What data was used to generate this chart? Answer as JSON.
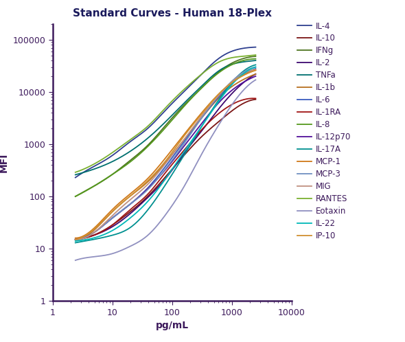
{
  "title": "Standard Curves - Human 18-Plex",
  "xlabel": "pg/mL",
  "ylabel": "MFI",
  "xlim": [
    1,
    10000
  ],
  "ylim": [
    1,
    200000
  ],
  "series": [
    {
      "label": "IL-4",
      "color": "#2e3f8f",
      "x": [
        2.4,
        4.8,
        9.8,
        19.5,
        39,
        78,
        156,
        313,
        625,
        1250,
        2500
      ],
      "y": [
        230,
        370,
        600,
        1100,
        2000,
        4500,
        10000,
        22000,
        45000,
        65000,
        72000
      ]
    },
    {
      "label": "IL-10",
      "color": "#7b1515",
      "x": [
        2.4,
        4.8,
        9.8,
        19.5,
        39,
        78,
        156,
        313,
        625,
        1250,
        2500
      ],
      "y": [
        15,
        18,
        28,
        50,
        100,
        240,
        600,
        1400,
        2800,
        5200,
        7200
      ]
    },
    {
      "label": "IFNg",
      "color": "#4e7520",
      "x": [
        2.4,
        4.8,
        9.8,
        19.5,
        39,
        78,
        156,
        313,
        625,
        1250,
        2500
      ],
      "y": [
        100,
        155,
        260,
        480,
        950,
        2300,
        5500,
        12000,
        25000,
        40000,
        48000
      ]
    },
    {
      "label": "IL-2",
      "color": "#3d0870",
      "x": [
        2.4,
        4.8,
        9.8,
        19.5,
        39,
        78,
        156,
        313,
        625,
        1250,
        2500
      ],
      "y": [
        15,
        18,
        26,
        46,
        95,
        220,
        650,
        1800,
        5000,
        12000,
        22000
      ]
    },
    {
      "label": "TNFa",
      "color": "#006f6f",
      "x": [
        2.4,
        4.8,
        9.8,
        19.5,
        39,
        78,
        156,
        313,
        625,
        1250,
        2500
      ],
      "y": [
        260,
        330,
        460,
        720,
        1300,
        2700,
        6000,
        13000,
        26000,
        36000,
        40000
      ]
    },
    {
      "label": "IL-1b",
      "color": "#b87020",
      "x": [
        2.4,
        4.8,
        9.8,
        19.5,
        39,
        78,
        156,
        313,
        625,
        1250,
        2500
      ],
      "y": [
        15,
        22,
        50,
        100,
        190,
        450,
        1200,
        3200,
        8000,
        15000,
        22000
      ]
    },
    {
      "label": "IL-6",
      "color": "#3a5cbf",
      "x": [
        2.4,
        4.8,
        9.8,
        19.5,
        39,
        78,
        156,
        313,
        625,
        1250,
        2500
      ],
      "y": [
        15,
        20,
        38,
        70,
        145,
        380,
        1100,
        3200,
        8500,
        18000,
        28000
      ]
    },
    {
      "label": "IL-1RA",
      "color": "#a01515",
      "x": [
        2.4,
        4.8,
        9.8,
        19.5,
        39,
        78,
        156,
        313,
        625,
        1250,
        2500
      ],
      "y": [
        15,
        18,
        28,
        55,
        110,
        290,
        750,
        1900,
        4000,
        6500,
        7500
      ]
    },
    {
      "label": "IL-8",
      "color": "#55991e",
      "x": [
        2.4,
        4.8,
        9.8,
        19.5,
        39,
        78,
        156,
        313,
        625,
        1250,
        2500
      ],
      "y": [
        100,
        155,
        260,
        450,
        900,
        2100,
        5200,
        12000,
        24000,
        37000,
        43000
      ]
    },
    {
      "label": "IL-12p70",
      "color": "#52109a",
      "x": [
        2.4,
        4.8,
        9.8,
        19.5,
        39,
        78,
        156,
        313,
        625,
        1250,
        2500
      ],
      "y": [
        15,
        20,
        38,
        70,
        140,
        330,
        900,
        2500,
        6500,
        13000,
        20000
      ]
    },
    {
      "label": "IL-17A",
      "color": "#009090",
      "x": [
        2.4,
        4.8,
        9.8,
        19.5,
        39,
        78,
        156,
        313,
        625,
        1250,
        2500
      ],
      "y": [
        13,
        15,
        18,
        25,
        55,
        170,
        600,
        2200,
        7500,
        20000,
        33000
      ]
    },
    {
      "label": "MCP-1",
      "color": "#d07818",
      "x": [
        2.4,
        4.8,
        9.8,
        19.5,
        39,
        78,
        156,
        313,
        625,
        1250,
        2500
      ],
      "y": [
        16,
        24,
        55,
        110,
        220,
        550,
        1500,
        4000,
        9500,
        18000,
        26000
      ]
    },
    {
      "label": "MCP-3",
      "color": "#7090c0",
      "x": [
        2.4,
        4.8,
        9.8,
        19.5,
        39,
        78,
        156,
        313,
        625,
        1250,
        2500
      ],
      "y": [
        15,
        20,
        38,
        70,
        135,
        340,
        1000,
        3200,
        9000,
        20000,
        30000
      ]
    },
    {
      "label": "MIG",
      "color": "#c09080",
      "x": [
        2.4,
        4.8,
        9.8,
        19.5,
        39,
        78,
        156,
        313,
        625,
        1250,
        2500
      ],
      "y": [
        15,
        20,
        42,
        85,
        170,
        430,
        1200,
        3500,
        9000,
        19000,
        27000
      ]
    },
    {
      "label": "RANTES",
      "color": "#7ab030",
      "x": [
        2.4,
        4.8,
        9.8,
        19.5,
        39,
        78,
        156,
        313,
        625,
        1250,
        2500
      ],
      "y": [
        290,
        410,
        680,
        1200,
        2200,
        5000,
        11000,
        22000,
        38000,
        47000,
        51000
      ]
    },
    {
      "label": "Eotaxin",
      "color": "#9090c0",
      "x": [
        2.4,
        4.8,
        9.8,
        19.5,
        39,
        78,
        156,
        313,
        625,
        1250,
        2500
      ],
      "y": [
        6,
        7,
        8,
        11,
        18,
        45,
        150,
        650,
        2500,
        8000,
        17000
      ]
    },
    {
      "label": "IL-22",
      "color": "#00b8b8",
      "x": [
        2.4,
        4.8,
        9.8,
        19.5,
        39,
        78,
        156,
        313,
        625,
        1250,
        2500
      ],
      "y": [
        14,
        16,
        22,
        38,
        80,
        220,
        700,
        2200,
        7000,
        18000,
        30000
      ]
    },
    {
      "label": "IP-10",
      "color": "#d09030",
      "x": [
        2.4,
        4.8,
        9.8,
        19.5,
        39,
        78,
        156,
        313,
        625,
        1250,
        2500
      ],
      "y": [
        15,
        23,
        50,
        100,
        200,
        480,
        1400,
        3800,
        9500,
        18000,
        26000
      ]
    }
  ],
  "title_fontsize": 11,
  "axis_label_fontsize": 10,
  "tick_label_fontsize": 9,
  "legend_fontsize": 8.5,
  "background_color": "#ffffff",
  "spine_color": "#3d1a5c",
  "tick_color": "#3d1a5c",
  "label_color": "#3d1a5c",
  "title_color": "#1a1a5c"
}
